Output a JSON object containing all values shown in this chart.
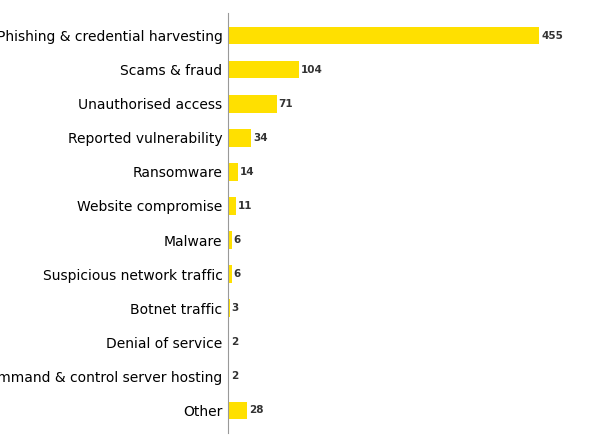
{
  "categories": [
    "Phishing & credential harvesting",
    "Scams & fraud",
    "Unauthorised access",
    "Reported vulnerability",
    "Ransomware",
    "Website compromise",
    "Malware",
    "Suspicious network traffic",
    "Botnet traffic",
    "Denial of service",
    "Command & control server hosting",
    "Other"
  ],
  "values": [
    455,
    104,
    71,
    34,
    14,
    11,
    6,
    6,
    3,
    2,
    2,
    28
  ],
  "bar_color": "#FFE000",
  "label_color": "#555555",
  "value_color": "#333333",
  "background_color": "#ffffff",
  "bar_height": 0.52,
  "xlim": [
    0,
    500
  ],
  "label_fontsize": 7.5,
  "value_fontsize": 7.5,
  "value_fontweight": "bold",
  "spine_color": "#999999",
  "figsize": [
    6.0,
    4.46
  ],
  "dpi": 100
}
